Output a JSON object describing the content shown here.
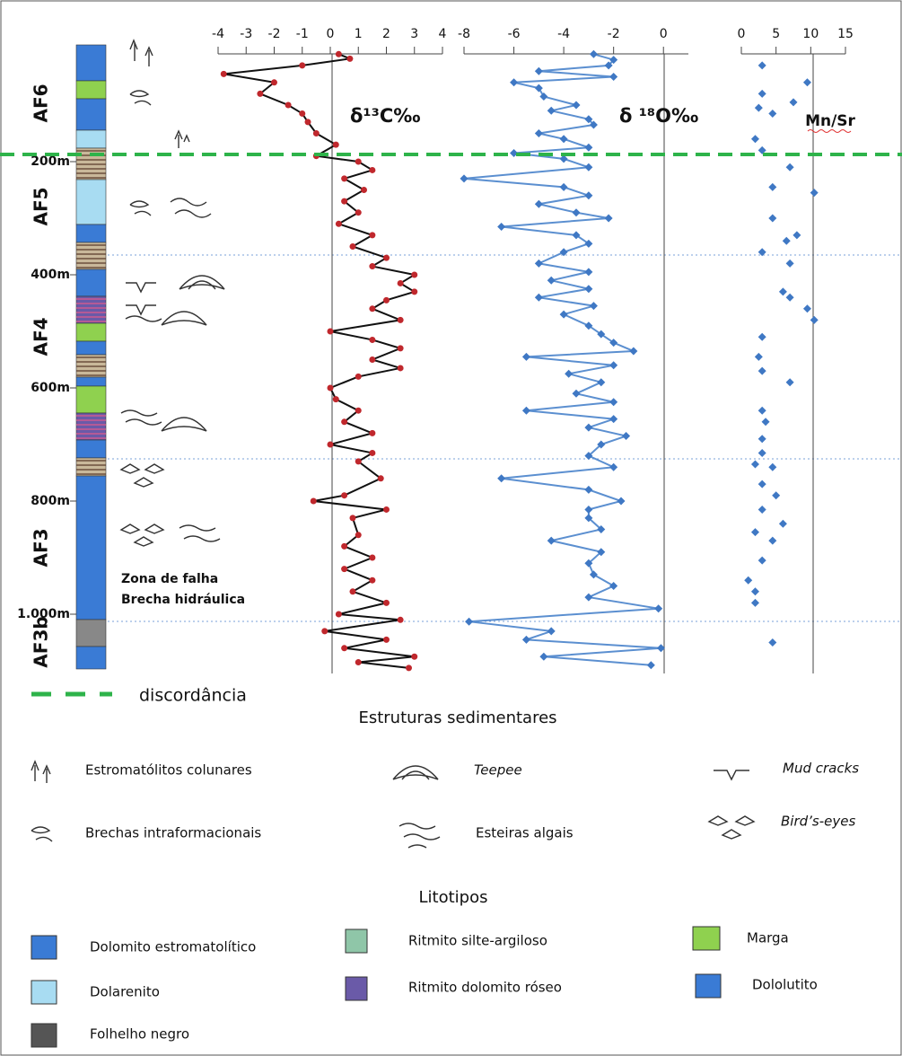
{
  "facies": [
    "AF6",
    "AF5",
    "AF4",
    "AF3",
    "AF3b"
  ],
  "fault_zone": [
    "Zona de falha",
    "Brecha hidráulica"
  ],
  "discordance_label": "discordância",
  "structures_title": "Estruturas sedimentares",
  "structures": [
    "Estromatólitos colunares",
    "Teepee",
    "Mud cracks",
    "Brechas intraformacionais",
    "Esteiras algais",
    "Bird’s-eyes"
  ],
  "lithotypes_title": "Litotipos",
  "lithotypes": [
    "Dolomito estromatolítico",
    "Ritmito silte-argiloso",
    "Marga",
    "Dolarenito",
    "Ritmito dolomito róseo",
    "Dololutito",
    "Folhelho negro"
  ],
  "chart_data": [
    {
      "type": "line",
      "title": "δ¹³C‰",
      "color": "#111111",
      "marker_color": "#c0282d",
      "xlim": [
        -4,
        4
      ],
      "xticks": [
        -4,
        -3,
        -2,
        -1,
        0,
        1,
        2,
        3,
        4
      ],
      "ylim": [
        0,
        1100
      ],
      "yticks": [
        {
          "value": 200,
          "label": "200m"
        },
        {
          "value": 400,
          "label": "400m"
        },
        {
          "value": 600,
          "label": "600m"
        },
        {
          "value": 800,
          "label": "800m"
        },
        {
          "value": 1000,
          "label": "1.000m"
        }
      ],
      "depth": [
        10,
        18,
        30,
        45,
        60,
        80,
        100,
        115,
        130,
        150,
        170,
        190,
        200,
        215,
        230,
        250,
        270,
        290,
        310,
        330,
        350,
        370,
        385,
        400,
        415,
        430,
        445,
        460,
        480,
        500,
        515,
        530,
        550,
        565,
        580,
        600,
        620,
        640,
        660,
        680,
        700,
        715,
        730,
        760,
        790,
        800,
        815,
        830,
        860,
        880,
        900,
        920,
        940,
        960,
        980,
        1000,
        1010,
        1030,
        1045,
        1060,
        1075,
        1085,
        1095
      ],
      "values": [
        0.3,
        0.7,
        -1,
        -3.8,
        -2,
        -2.5,
        -1.5,
        -1,
        -0.8,
        -0.5,
        0.2,
        -0.5,
        1,
        1.5,
        0.5,
        1.2,
        0.5,
        1,
        0.3,
        1.5,
        0.8,
        2,
        1.5,
        3,
        2.5,
        3,
        2,
        1.5,
        2.5,
        0,
        1.5,
        2.5,
        1.5,
        2.5,
        1,
        0,
        0.2,
        1,
        0.5,
        1.5,
        0,
        1.5,
        1,
        1.8,
        0.5,
        -0.6,
        2,
        0.8,
        1,
        0.5,
        1.5,
        0.5,
        1.5,
        0.8,
        2,
        0.3,
        2.5,
        -0.2,
        2,
        0.5,
        3,
        1,
        2.8
      ]
    },
    {
      "type": "line",
      "title": "δ ¹⁸O‰",
      "color": "#5b8fd0",
      "marker_color": "#3f78c4",
      "xlim": [
        -8,
        1
      ],
      "xticks": [
        -8,
        -6,
        -4,
        -2,
        0
      ],
      "ylim": [
        0,
        1100
      ],
      "depth": [
        10,
        20,
        30,
        40,
        50,
        60,
        70,
        85,
        100,
        110,
        125,
        135,
        150,
        160,
        175,
        185,
        195,
        210,
        230,
        245,
        260,
        275,
        290,
        300,
        315,
        330,
        345,
        360,
        380,
        395,
        410,
        425,
        440,
        455,
        470,
        490,
        505,
        520,
        535,
        545,
        560,
        575,
        590,
        610,
        625,
        640,
        655,
        670,
        685,
        700,
        720,
        740,
        760,
        780,
        800,
        815,
        830,
        850,
        870,
        890,
        910,
        930,
        950,
        970,
        990,
        1013,
        1030,
        1045,
        1060,
        1075,
        1090
      ],
      "values": [
        -2.8,
        -2,
        -2.2,
        -5,
        -2,
        -6,
        -5,
        -4.8,
        -3.5,
        -4.5,
        -3,
        -2.8,
        -5,
        -4,
        -3,
        -6,
        -4,
        -3,
        -8,
        -4,
        -3,
        -5,
        -3.5,
        -2.2,
        -6.5,
        -3.5,
        -3,
        -4,
        -5,
        -3,
        -4.5,
        -3,
        -5,
        -2.8,
        -4,
        -3,
        -2.5,
        -2,
        -1.2,
        -5.5,
        -2,
        -3.8,
        -2.5,
        -3.5,
        -2,
        -5.5,
        -2,
        -3,
        -1.5,
        -2.5,
        -3,
        -2,
        -6.5,
        -3,
        -1.7,
        -3,
        -3,
        -2.5,
        -4.5,
        -2.5,
        -3,
        -2.8,
        -2,
        -3,
        -0.2,
        -7.8,
        -4.5,
        -5.5,
        -0.1,
        -4.8,
        -0.5
      ]
    },
    {
      "type": "scatter",
      "title": "Mn/Sr",
      "marker_color": "#3f78c4",
      "xlim": [
        0,
        15
      ],
      "xticks": [
        0,
        5,
        10,
        15
      ],
      "ylim": [
        0,
        1100
      ],
      "depth": [
        30,
        60,
        80,
        95,
        105,
        115,
        160,
        180,
        210,
        245,
        255,
        300,
        330,
        340,
        360,
        380,
        430,
        440,
        460,
        480,
        510,
        545,
        570,
        590,
        640,
        660,
        690,
        715,
        735,
        740,
        770,
        790,
        815,
        840,
        855,
        870,
        905,
        940,
        960,
        980,
        1050
      ],
      "values": [
        3,
        9.5,
        3,
        7.5,
        2.5,
        4.5,
        2,
        3,
        7,
        4.5,
        10.5,
        4.5,
        8,
        6.5,
        3,
        7,
        6,
        7,
        9.5,
        10.5,
        3,
        2.5,
        3,
        7,
        3,
        3.5,
        3,
        3,
        2,
        4.5,
        3,
        5,
        3,
        6,
        2,
        4.5,
        3,
        1,
        2,
        2,
        4.5
      ]
    }
  ]
}
